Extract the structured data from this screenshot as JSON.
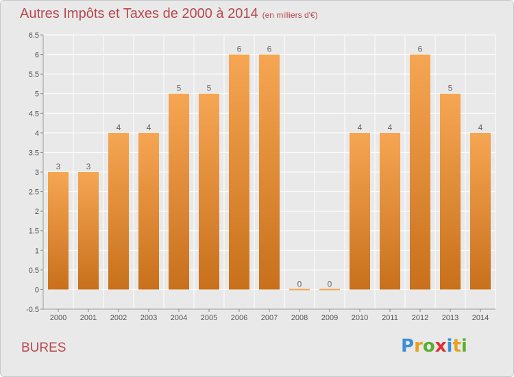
{
  "title": "Autres Impôts et Taxes de 2000 à 2014",
  "subtitle": "(en milliers d'€)",
  "town": "BURES",
  "logo": {
    "text": "Proxiti",
    "letters": [
      {
        "ch": "P",
        "color": "#3a8fd6"
      },
      {
        "ch": "r",
        "color": "#e8a21a"
      },
      {
        "ch": "o",
        "color": "#58b030"
      },
      {
        "ch": "x",
        "color": "#e03030"
      },
      {
        "ch": "i",
        "color": "#3a8fd6"
      },
      {
        "ch": "t",
        "color": "#e8a21a"
      },
      {
        "ch": "i",
        "color": "#58b030"
      }
    ]
  },
  "colors": {
    "bar_light": "#f6a653",
    "bar_dark": "#c8701c",
    "title": "#b8484e",
    "grid": "#ffffff",
    "background": "#e9e9e9"
  },
  "chart_data": {
    "type": "bar",
    "title": "Autres Impôts et Taxes de 2000 à 2014",
    "subtitle": "(en milliers d'€)",
    "xlabel": "",
    "ylabel": "",
    "categories": [
      "2000",
      "2001",
      "2002",
      "2003",
      "2004",
      "2005",
      "2006",
      "2007",
      "2008",
      "2009",
      "2010",
      "2011",
      "2012",
      "2013",
      "2014"
    ],
    "values": [
      3,
      3,
      4,
      4,
      5,
      5,
      6,
      6,
      0,
      0,
      4,
      4,
      6,
      5,
      4
    ],
    "data_labels": [
      "3",
      "3",
      "4",
      "4",
      "5",
      "5",
      "6",
      "6",
      "0",
      "0",
      "4",
      "4",
      "6",
      "5",
      "4"
    ],
    "ylim": [
      -0.5,
      6.5
    ],
    "yticks": [
      -0.5,
      0,
      0.5,
      1,
      1.5,
      2,
      2.5,
      3,
      3.5,
      4,
      4.5,
      5,
      5.5,
      6,
      6.5
    ],
    "ytick_labels": [
      "-0.5",
      "0",
      "0.5",
      "1",
      "1.5",
      "2",
      "2.5",
      "3",
      "3.5",
      "4",
      "4.5",
      "5",
      "5.5",
      "6",
      "6.5"
    ],
    "grid": true,
    "legend": "none"
  }
}
